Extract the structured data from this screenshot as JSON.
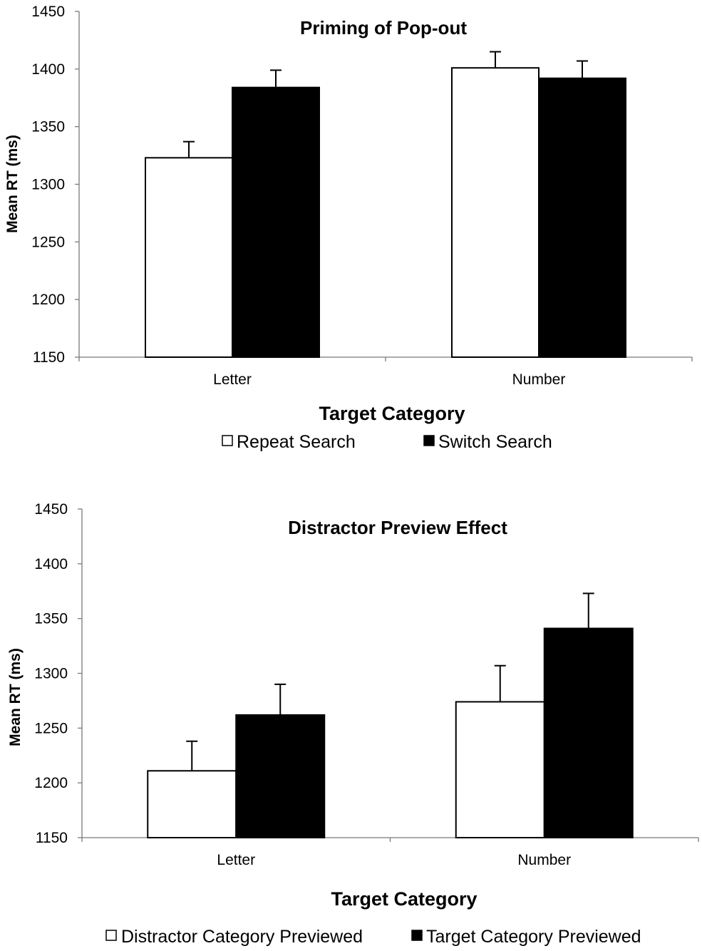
{
  "chart_data": [
    {
      "type": "bar",
      "title": "Priming of Pop-out",
      "xlabel": "Target Category",
      "ylabel": "Mean RT (ms)",
      "categories": [
        "Letter",
        "Number"
      ],
      "ylim": [
        1150,
        1450
      ],
      "yticks": [
        1150,
        1200,
        1250,
        1300,
        1350,
        1400,
        1450
      ],
      "series": [
        {
          "name": "Repeat Search",
          "values": [
            1323,
            1401
          ],
          "errors": [
            14,
            14
          ],
          "color": "#ffffff"
        },
        {
          "name": "Switch Search",
          "values": [
            1384,
            1392
          ],
          "errors": [
            15,
            15
          ],
          "color": "#000000"
        }
      ],
      "legend": "bottom",
      "grid": false
    },
    {
      "type": "bar",
      "title": "Distractor Preview Effect",
      "xlabel": "Target Category",
      "ylabel": "Mean RT (ms)",
      "categories": [
        "Letter",
        "Number"
      ],
      "ylim": [
        1150,
        1450
      ],
      "yticks": [
        1150,
        1200,
        1250,
        1300,
        1350,
        1400,
        1450
      ],
      "series": [
        {
          "name": "Distractor Category Previewed",
          "values": [
            1211,
            1274
          ],
          "errors": [
            27,
            33
          ],
          "color": "#ffffff"
        },
        {
          "name": "Target Category Previewed",
          "values": [
            1262,
            1341
          ],
          "errors": [
            28,
            32
          ],
          "color": "#000000"
        }
      ],
      "legend": "bottom",
      "grid": false
    }
  ]
}
